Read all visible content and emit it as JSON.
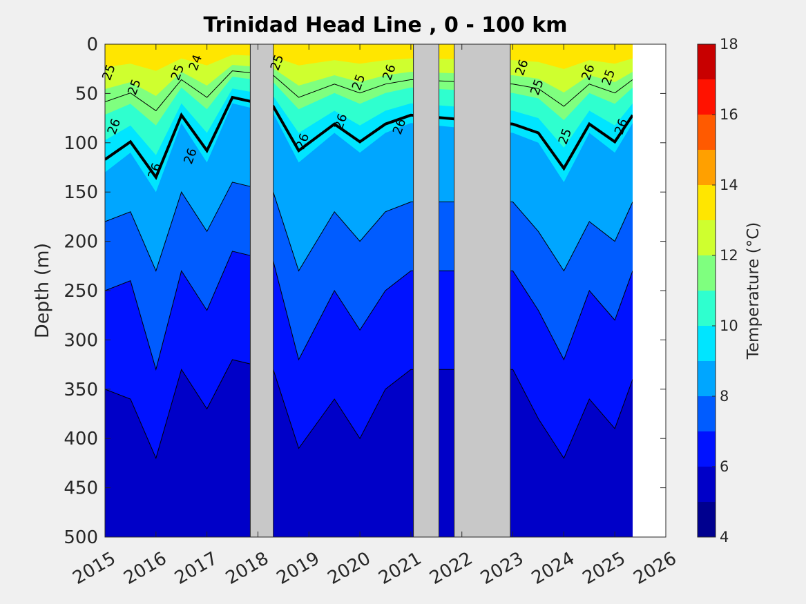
{
  "chart_data": {
    "type": "heatmap",
    "title": "Trinidad Head Line , 0 - 100 km",
    "ylabel": "Depth (m)",
    "xlabel": "",
    "x_range": [
      2015,
      2026
    ],
    "x_ticks": [
      "2015",
      "2016",
      "2017",
      "2018",
      "2019",
      "2020",
      "2021",
      "2022",
      "2023",
      "2024",
      "2025",
      "2026"
    ],
    "y_range": [
      0,
      500
    ],
    "y_reversed": true,
    "y_ticks": [
      "0",
      "50",
      "100",
      "150",
      "200",
      "250",
      "300",
      "350",
      "400",
      "450",
      "500"
    ],
    "data_extent_years": [
      2014.9,
      2025.35
    ],
    "colorbar": {
      "label": "Temperature (°C)",
      "range": [
        4,
        18
      ],
      "ticks": [
        "4",
        "6",
        "8",
        "10",
        "12",
        "14",
        "16",
        "18"
      ],
      "levels": [
        4,
        5,
        6,
        7,
        8,
        9,
        10,
        11,
        12,
        13,
        14,
        15,
        16,
        17,
        18
      ],
      "colors": [
        "#00008f",
        "#0000c8",
        "#0012ff",
        "#005cff",
        "#00a6ff",
        "#00e5ff",
        "#2fffcf",
        "#7fff7f",
        "#cfff2f",
        "#ffe600",
        "#ffa000",
        "#ff5a00",
        "#ff1200",
        "#c80000"
      ]
    },
    "no_data_periods": [
      [
        2017.85,
        2018.3
      ],
      [
        2021.05,
        2021.55
      ],
      [
        2021.85,
        2022.95
      ]
    ],
    "isotherm_depths_m": {
      "years": [
        2015.0,
        2015.5,
        2016.0,
        2016.5,
        2017.0,
        2017.5,
        2018.3,
        2018.8,
        2019.5,
        2020.0,
        2020.5,
        2021.0,
        2023.0,
        2023.5,
        2024.0,
        2024.5,
        2025.0,
        2025.35
      ],
      "t9": [
        130,
        110,
        150,
        80,
        120,
        60,
        70,
        120,
        90,
        110,
        90,
        80,
        90,
        100,
        140,
        90,
        110,
        80
      ],
      "t8": [
        180,
        170,
        230,
        150,
        190,
        140,
        150,
        230,
        170,
        200,
        170,
        160,
        160,
        190,
        230,
        180,
        200,
        160
      ],
      "t7": [
        250,
        240,
        330,
        230,
        270,
        210,
        220,
        320,
        250,
        290,
        250,
        230,
        230,
        270,
        320,
        250,
        280,
        230
      ],
      "t6": [
        350,
        360,
        420,
        330,
        370,
        320,
        330,
        410,
        360,
        400,
        350,
        330,
        330,
        380,
        420,
        360,
        390,
        340
      ]
    },
    "contour_labels": [
      "25",
      "25",
      "26",
      "26",
      "26",
      "24",
      "25",
      "26",
      "26",
      "25",
      "26",
      "26",
      "26",
      "25",
      "25",
      "26",
      "25",
      "26",
      "25"
    ]
  }
}
